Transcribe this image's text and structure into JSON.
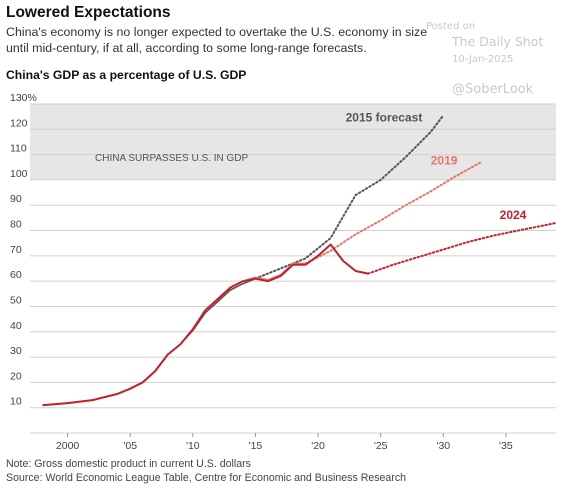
{
  "header": {
    "title": "Lowered Expectations",
    "subtitle": "China's economy is no longer expected to overtake the U.S. economy in size until mid-century, if at all, according to some long-range forecasts.",
    "section_title": "China's GDP as a percentage of U.S. GDP"
  },
  "watermark": {
    "posted_on": "Posted on",
    "source_name": "The Daily Shot",
    "date": "10-Jan-2025",
    "handle": "@SoberLook"
  },
  "footer": {
    "note": "Note: Gross domestic product in current U.S. dollars",
    "source": "Source: World Economic League Table, Centre for Economic and Business Research"
  },
  "chart_data": {
    "type": "line",
    "title": "China's GDP as a percentage of U.S. GDP",
    "xlabel": "",
    "ylabel": "",
    "xlim": [
      1997,
      2039
    ],
    "ylim": [
      0,
      130
    ],
    "grid": true,
    "x_ticks": [
      {
        "value": 2000,
        "label": "2000"
      },
      {
        "value": 2005,
        "label": "'05"
      },
      {
        "value": 2010,
        "label": "'10"
      },
      {
        "value": 2015,
        "label": "'15"
      },
      {
        "value": 2020,
        "label": "'20"
      },
      {
        "value": 2025,
        "label": "'25"
      },
      {
        "value": 2030,
        "label": "'30"
      },
      {
        "value": 2035,
        "label": "'35"
      }
    ],
    "y_ticks": [
      {
        "value": 10,
        "label": "10"
      },
      {
        "value": 20,
        "label": "20"
      },
      {
        "value": 30,
        "label": "30"
      },
      {
        "value": 40,
        "label": "40"
      },
      {
        "value": 50,
        "label": "50"
      },
      {
        "value": 60,
        "label": "60"
      },
      {
        "value": 70,
        "label": "70"
      },
      {
        "value": 80,
        "label": "80"
      },
      {
        "value": 90,
        "label": "90"
      },
      {
        "value": 100,
        "label": "100"
      },
      {
        "value": 110,
        "label": "110"
      },
      {
        "value": 120,
        "label": "120"
      },
      {
        "value": 130,
        "label": "130%"
      }
    ],
    "shaded_region": {
      "from": 100,
      "to": 130,
      "label": "CHINA SURPASSES U.S. IN GDP",
      "color": "#e6e6e6"
    },
    "series": [
      {
        "name": "2015 forecast",
        "color": "#555555",
        "actual": [
          [
            1998,
            11
          ],
          [
            2000,
            11.8
          ],
          [
            2002,
            13
          ],
          [
            2004,
            15.5
          ],
          [
            2005,
            17.5
          ],
          [
            2006,
            20
          ],
          [
            2007,
            24.5
          ],
          [
            2008,
            31
          ],
          [
            2009,
            35
          ],
          [
            2010,
            40.5
          ],
          [
            2011,
            47.5
          ],
          [
            2012,
            52
          ],
          [
            2013,
            56.5
          ],
          [
            2014,
            59
          ],
          [
            2015,
            61
          ]
        ],
        "forecast": [
          [
            2015,
            61
          ],
          [
            2017,
            65
          ],
          [
            2019,
            69
          ],
          [
            2021,
            77
          ],
          [
            2023,
            94
          ],
          [
            2025,
            100
          ],
          [
            2027,
            109
          ],
          [
            2029,
            119
          ],
          [
            2030,
            125.5
          ]
        ]
      },
      {
        "name": "2019",
        "color": "#e8756a",
        "actual": [
          [
            1998,
            11
          ],
          [
            2000,
            11.8
          ],
          [
            2002,
            13
          ],
          [
            2004,
            15.5
          ],
          [
            2005,
            17.5
          ],
          [
            2006,
            20
          ],
          [
            2007,
            24.5
          ],
          [
            2008,
            31
          ],
          [
            2009,
            35
          ],
          [
            2010,
            41
          ],
          [
            2011,
            48.5
          ],
          [
            2012,
            53
          ],
          [
            2013,
            57.5
          ],
          [
            2014,
            60
          ],
          [
            2015,
            61.5
          ],
          [
            2016,
            60.5
          ],
          [
            2017,
            62.5
          ],
          [
            2018,
            67
          ],
          [
            2019,
            67
          ]
        ],
        "forecast": [
          [
            2019,
            67
          ],
          [
            2021,
            72
          ],
          [
            2023,
            78.5
          ],
          [
            2025,
            84
          ],
          [
            2027,
            90
          ],
          [
            2029,
            95.5
          ],
          [
            2031,
            101.5
          ],
          [
            2033,
            107
          ]
        ]
      },
      {
        "name": "2024",
        "color": "#c8202b",
        "actual": [
          [
            1998,
            11
          ],
          [
            2000,
            11.8
          ],
          [
            2002,
            13
          ],
          [
            2004,
            15.5
          ],
          [
            2005,
            17.5
          ],
          [
            2006,
            20
          ],
          [
            2007,
            24.5
          ],
          [
            2008,
            31
          ],
          [
            2009,
            35
          ],
          [
            2010,
            41
          ],
          [
            2011,
            48.5
          ],
          [
            2012,
            53
          ],
          [
            2013,
            57.5
          ],
          [
            2014,
            60
          ],
          [
            2015,
            61
          ],
          [
            2016,
            60
          ],
          [
            2017,
            62
          ],
          [
            2018,
            66.5
          ],
          [
            2019,
            66.5
          ],
          [
            2020,
            70
          ],
          [
            2021,
            74.5
          ],
          [
            2022,
            68
          ],
          [
            2023,
            64
          ],
          [
            2024,
            63
          ]
        ],
        "forecast": [
          [
            2024,
            63
          ],
          [
            2026,
            66.5
          ],
          [
            2028,
            69.5
          ],
          [
            2030,
            72.5
          ],
          [
            2032,
            75.5
          ],
          [
            2034,
            78
          ],
          [
            2036,
            80
          ],
          [
            2038,
            82
          ],
          [
            2039,
            83
          ]
        ]
      }
    ]
  }
}
